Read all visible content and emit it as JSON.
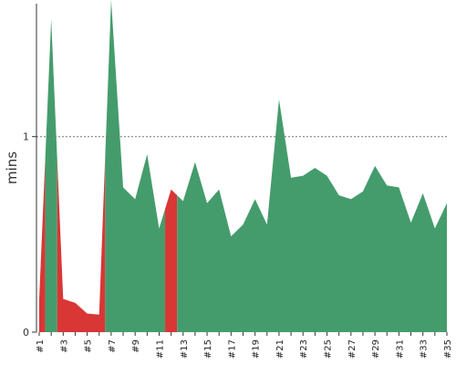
{
  "chart_data": {
    "type": "area",
    "ylabel": "mins",
    "ylim": [
      0,
      1.68
    ],
    "yticks": [
      {
        "value": 0,
        "label": "0"
      },
      {
        "value": 1,
        "label": "1"
      }
    ],
    "reference_line": {
      "value": 1,
      "style": "dotted"
    },
    "x": [
      1,
      2,
      3,
      4,
      5,
      6,
      7,
      8,
      9,
      10,
      11,
      12,
      13,
      14,
      15,
      16,
      17,
      18,
      19,
      20,
      21,
      22,
      23,
      24,
      25,
      26,
      27,
      28,
      29,
      30,
      31,
      32,
      33,
      34,
      35
    ],
    "x_tick_labels": [
      "#1",
      "#3",
      "#5",
      "#7",
      "#9",
      "#11",
      "#13",
      "#15",
      "#17",
      "#19",
      "#21",
      "#23",
      "#25",
      "#27",
      "#29",
      "#31",
      "#33",
      "#35"
    ],
    "values": [
      0.17,
      1.6,
      0.17,
      0.15,
      0.095,
      0.09,
      1.7,
      0.74,
      0.68,
      0.91,
      0.53,
      0.73,
      0.67,
      0.87,
      0.66,
      0.73,
      0.49,
      0.55,
      0.68,
      0.55,
      1.19,
      0.79,
      0.8,
      0.84,
      0.8,
      0.7,
      0.68,
      0.72,
      0.85,
      0.75,
      0.74,
      0.56,
      0.71,
      0.53,
      0.66
    ],
    "status": [
      "fail",
      "pass",
      "fail",
      "fail",
      "fail",
      "fail",
      "pass",
      "pass",
      "pass",
      "pass",
      "pass",
      "fail",
      "pass",
      "pass",
      "pass",
      "pass",
      "pass",
      "pass",
      "pass",
      "pass",
      "pass",
      "pass",
      "pass",
      "pass",
      "pass",
      "pass",
      "pass",
      "pass",
      "pass",
      "pass",
      "pass",
      "pass",
      "pass",
      "pass",
      "pass"
    ],
    "colors": {
      "pass": "#449c6c",
      "fail": "#d93636",
      "axis": "#333333",
      "reference": "#777777"
    }
  }
}
